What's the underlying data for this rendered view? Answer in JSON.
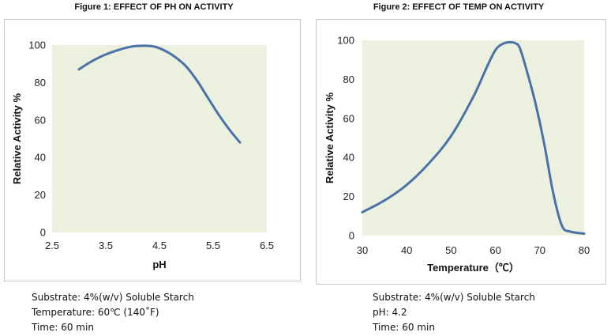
{
  "chart_data": [
    {
      "type": "line",
      "title": "Figure 1: EFFECT OF PH ON ACTIVITY",
      "xlabel": "pH",
      "ylabel": "Relative Activity %",
      "xlim": [
        2.5,
        6.5
      ],
      "ylim": [
        0,
        100
      ],
      "xticks": [
        "2.5",
        "3.5",
        "4.5",
        "5.5",
        "6.5"
      ],
      "yticks": [
        "0",
        "20",
        "40",
        "60",
        "80",
        "100"
      ],
      "grid": false,
      "plot_background": "#ebf1de",
      "line_color": "#4a72a8",
      "series": [
        {
          "x": [
            3.0,
            3.25,
            3.5,
            3.75,
            4.0,
            4.2,
            4.4,
            4.6,
            4.8,
            5.0,
            5.2,
            5.4,
            5.6,
            5.8,
            6.0
          ],
          "values": [
            87,
            91.5,
            95,
            97.5,
            99.3,
            99.6,
            99.2,
            97,
            93.5,
            88.5,
            81,
            72,
            63,
            55,
            48
          ]
        }
      ]
    },
    {
      "type": "line",
      "title": "Figure 2: EFFECT OF TEMP ON ACTIVITY",
      "xlabel": "Temperature（℃）",
      "ylabel": "Relative  Activity %",
      "xlim": [
        30,
        80
      ],
      "ylim": [
        0,
        100
      ],
      "xticks": [
        "30",
        "40",
        "50",
        "60",
        "70",
        "80"
      ],
      "yticks": [
        "0",
        "20",
        "40",
        "60",
        "80",
        "100"
      ],
      "grid": false,
      "plot_background": "#ebf1de",
      "line_color": "#4a72a8",
      "series": [
        {
          "x": [
            30,
            35,
            40,
            45,
            50,
            55,
            58,
            60,
            61.5,
            63,
            64.5,
            65.5,
            67,
            69,
            71,
            73,
            75,
            77,
            80
          ],
          "values": [
            12,
            18,
            26,
            37,
            51,
            71,
            86,
            95,
            98,
            99,
            98.5,
            96,
            85,
            68,
            47,
            22,
            5,
            2,
            1
          ]
        }
      ]
    }
  ],
  "notes": [
    [
      "Substrate: 4%(w/v) Soluble Starch",
      "Temperature: 60℃ (140˚F)",
      "Time: 60 min"
    ],
    [
      "Substrate: 4%(w/v) Soluble Starch",
      "pH: 4.2",
      "Time: 60 min"
    ]
  ]
}
